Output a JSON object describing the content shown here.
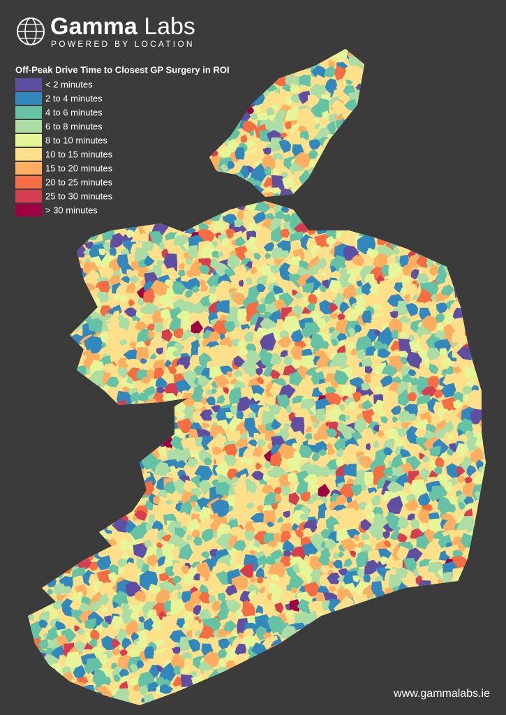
{
  "header": {
    "brand_bold": "Gamma",
    "brand_light": "Labs",
    "tagline": "POWERED BY LOCATION"
  },
  "legend": {
    "title": "Off-Peak Drive Time to Closest GP Surgery in ROI",
    "items": [
      {
        "label": "< 2 minutes",
        "color": "#5e4fa2"
      },
      {
        "label": "2 to 4 minutes",
        "color": "#3288bd"
      },
      {
        "label": "4 to 6 minutes",
        "color": "#66c2a5"
      },
      {
        "label": "6 to 8 minutes",
        "color": "#abdda4"
      },
      {
        "label": "8 to 10 minutes",
        "color": "#e6f598"
      },
      {
        "label": "10 to 15 minutes",
        "color": "#fee08b"
      },
      {
        "label": "15 to 20 minutes",
        "color": "#fdae61"
      },
      {
        "label": "20 to 25 minutes",
        "color": "#f46d43"
      },
      {
        "label": "25 to 30 minutes",
        "color": "#d53e4f"
      },
      {
        "label": "> 30 minutes",
        "color": "#9e0142"
      }
    ]
  },
  "footer": {
    "url": "www.gammalabs.ie"
  }
}
